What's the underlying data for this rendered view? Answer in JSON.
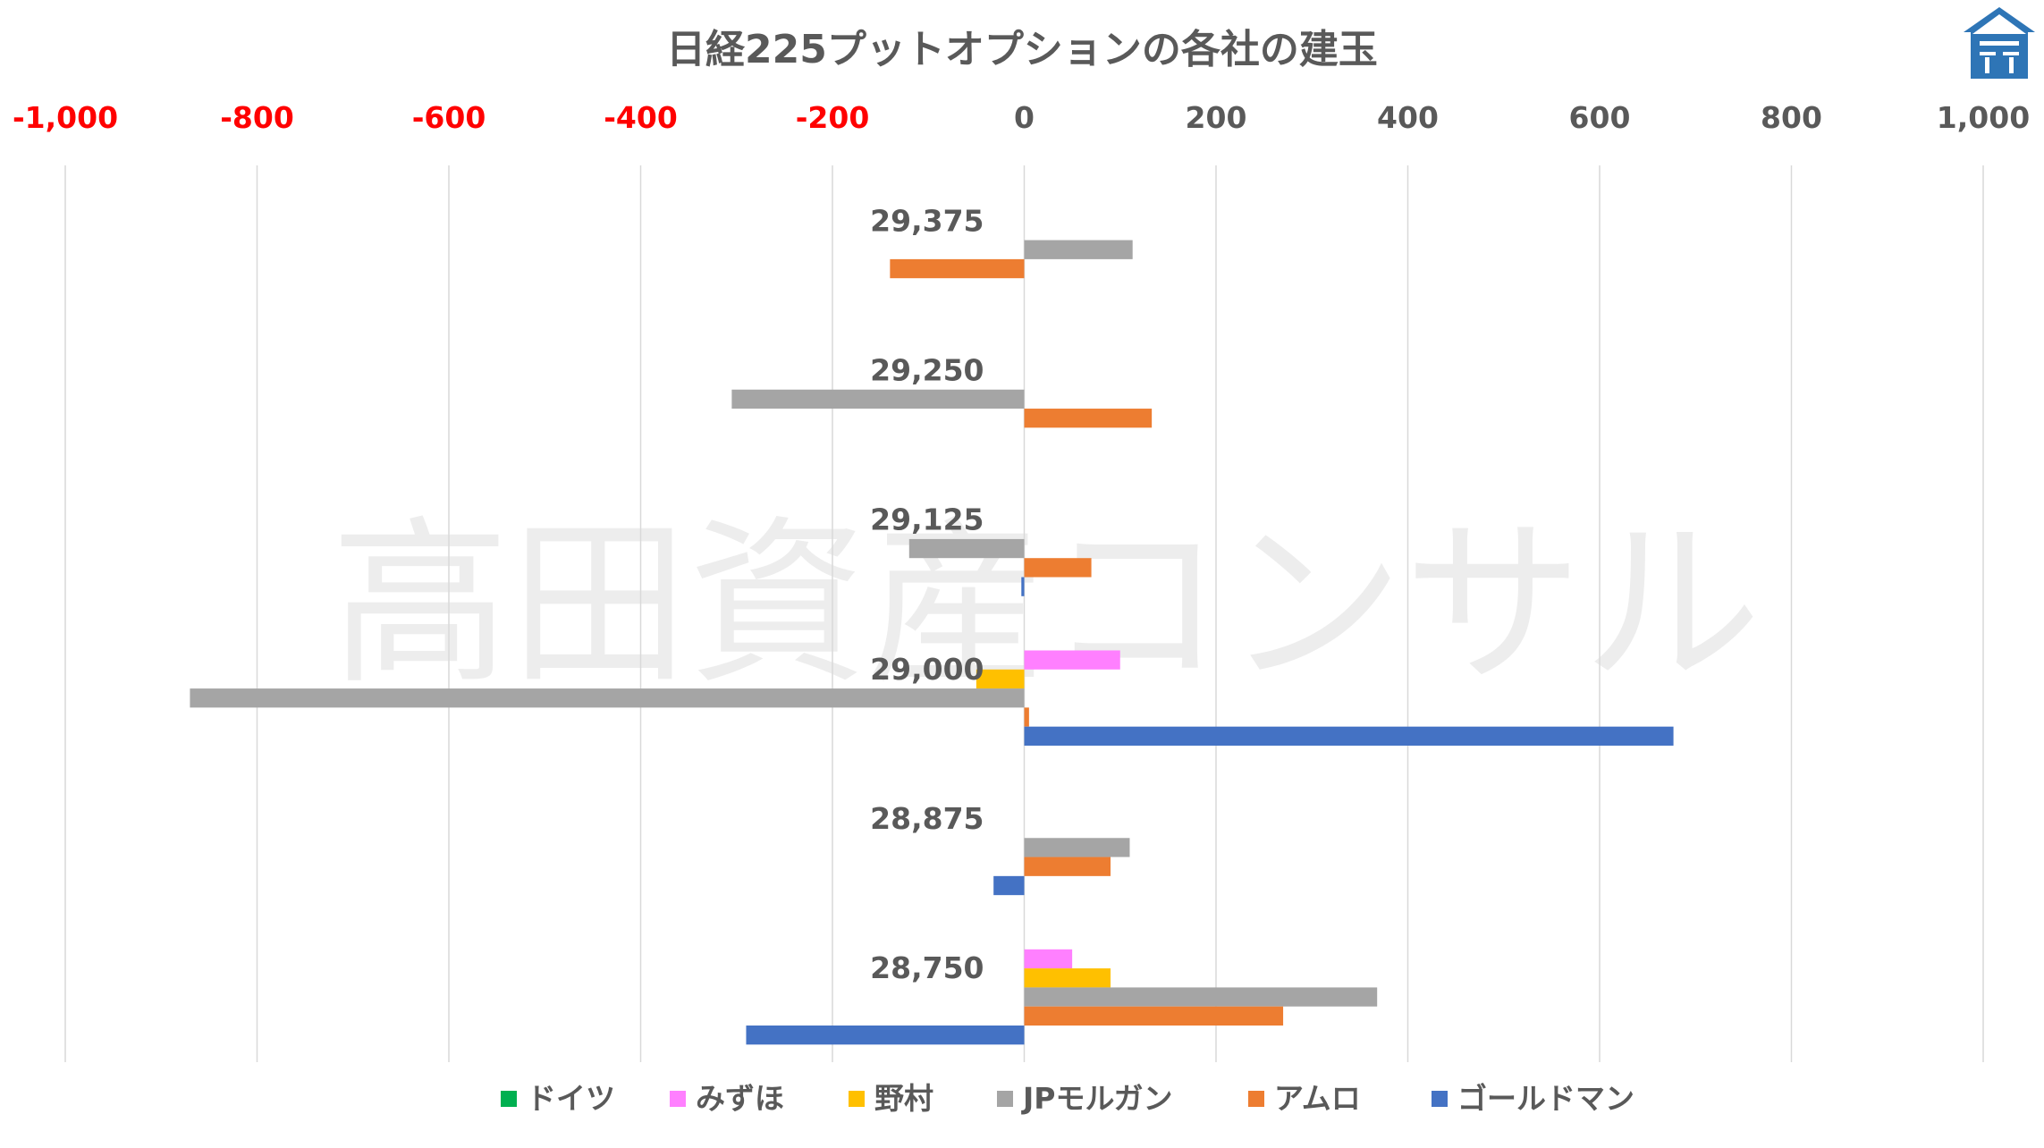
{
  "watermark_text": "高田資産コンサル",
  "chart_data": {
    "type": "bar",
    "orientation": "horizontal",
    "title": "日経225プットオプションの各社の建玉",
    "xlim": [
      -1000,
      1000
    ],
    "x_ticks": [
      -1000,
      -800,
      -600,
      -400,
      -200,
      0,
      200,
      400,
      600,
      800,
      1000
    ],
    "x_tick_labels": [
      "-1,000",
      "-800",
      "-600",
      "-400",
      "-200",
      "0",
      "200",
      "400",
      "600",
      "800",
      "1,000"
    ],
    "negative_tick_color": "#ff0000",
    "positive_tick_color": "#595959",
    "grid": true,
    "legend_position": "bottom",
    "categories": [
      "29,375",
      "29,250",
      "29,125",
      "29,000",
      "28,875",
      "28,750"
    ],
    "series": [
      {
        "name": "ドイツ",
        "color": "#00b050",
        "values": [
          0,
          0,
          0,
          0,
          0,
          0
        ]
      },
      {
        "name": "みずほ",
        "color": "#ff80ff",
        "values": [
          0,
          0,
          0,
          100,
          0,
          50
        ]
      },
      {
        "name": "野村",
        "color": "#ffc000",
        "values": [
          0,
          0,
          0,
          -50,
          0,
          90
        ]
      },
      {
        "name": "JPモルガン",
        "color": "#a5a5a5",
        "values": [
          113,
          -305,
          -120,
          -870,
          110,
          368
        ]
      },
      {
        "name": "アムロ",
        "color": "#ed7d31",
        "values": [
          -140,
          133,
          70,
          5,
          90,
          270
        ]
      },
      {
        "name": "ゴールドマン",
        "color": "#4472c4",
        "values": [
          0,
          0,
          -3,
          677,
          -32,
          -290
        ]
      }
    ]
  }
}
